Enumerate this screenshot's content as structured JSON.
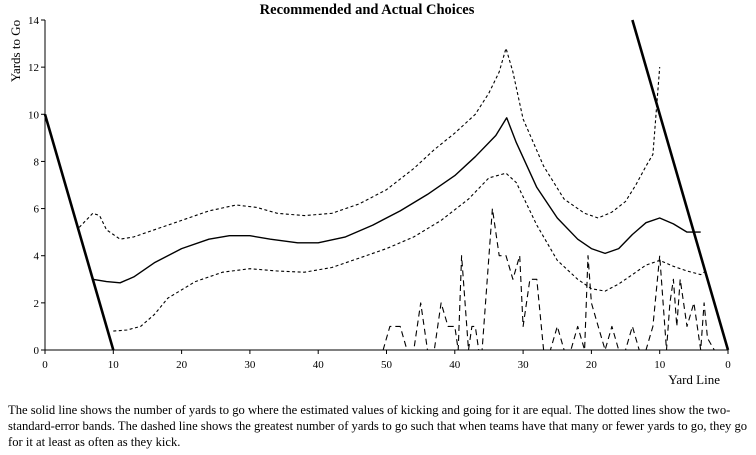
{
  "chart_data": {
    "type": "line",
    "title": "Recommended and Actual Choices",
    "xlabel": "Yard Line",
    "ylabel": "Yards to Go",
    "x_ticks": [
      0,
      10,
      20,
      30,
      40,
      50,
      40,
      30,
      20,
      10,
      0
    ],
    "y_ticks": [
      0,
      2,
      4,
      6,
      8,
      10,
      12,
      14
    ],
    "xlim": [
      0,
      100
    ],
    "ylim": [
      0,
      14
    ],
    "grid": false,
    "x_note": "x is distance from own goal line; right end is opponent's goal line",
    "series": [
      {
        "style": "solid",
        "points": [
          [
            7,
            3.0
          ],
          [
            9,
            2.9
          ],
          [
            11,
            2.85
          ],
          [
            13,
            3.1
          ],
          [
            16,
            3.7
          ],
          [
            20,
            4.3
          ],
          [
            24,
            4.7
          ],
          [
            27,
            4.85
          ],
          [
            30,
            4.85
          ],
          [
            33,
            4.7
          ],
          [
            37,
            4.55
          ],
          [
            40,
            4.55
          ],
          [
            44,
            4.8
          ],
          [
            48,
            5.3
          ],
          [
            52,
            5.9
          ],
          [
            56,
            6.6
          ],
          [
            60,
            7.4
          ],
          [
            63,
            8.2
          ],
          [
            66,
            9.1
          ],
          [
            67.6,
            9.85
          ],
          [
            69,
            8.8
          ],
          [
            72,
            6.9
          ],
          [
            75,
            5.6
          ],
          [
            78,
            4.7
          ],
          [
            80,
            4.3
          ],
          [
            82,
            4.1
          ],
          [
            84,
            4.3
          ],
          [
            86,
            4.9
          ],
          [
            88,
            5.4
          ],
          [
            90,
            5.6
          ],
          [
            92,
            5.35
          ],
          [
            94,
            5.0
          ],
          [
            96,
            5.0
          ]
        ]
      },
      {
        "style": "dotted",
        "points": [
          [
            5,
            5.2
          ],
          [
            7,
            5.8
          ],
          [
            8,
            5.7
          ],
          [
            9,
            5.1
          ],
          [
            11,
            4.7
          ],
          [
            13,
            4.8
          ],
          [
            16,
            5.1
          ],
          [
            20,
            5.5
          ],
          [
            24,
            5.9
          ],
          [
            28,
            6.15
          ],
          [
            31,
            6.05
          ],
          [
            34,
            5.8
          ],
          [
            38,
            5.7
          ],
          [
            42,
            5.8
          ],
          [
            46,
            6.2
          ],
          [
            50,
            6.8
          ],
          [
            54,
            7.7
          ],
          [
            57,
            8.5
          ],
          [
            60,
            9.2
          ],
          [
            63,
            10.0
          ],
          [
            65,
            10.9
          ],
          [
            66.5,
            11.8
          ],
          [
            67.5,
            12.8
          ],
          [
            68.5,
            11.8
          ],
          [
            70,
            9.8
          ],
          [
            73,
            7.8
          ],
          [
            76,
            6.4
          ],
          [
            79,
            5.8
          ],
          [
            81,
            5.6
          ],
          [
            83,
            5.85
          ],
          [
            85,
            6.3
          ],
          [
            86.5,
            7.0
          ],
          [
            88,
            7.8
          ],
          [
            89,
            8.3
          ],
          [
            90,
            12.0
          ]
        ]
      },
      {
        "style": "dotted",
        "points": [
          [
            10,
            0.8
          ],
          [
            12,
            0.85
          ],
          [
            14,
            1.0
          ],
          [
            16,
            1.5
          ],
          [
            18,
            2.2
          ],
          [
            22,
            2.9
          ],
          [
            26,
            3.3
          ],
          [
            30,
            3.45
          ],
          [
            34,
            3.35
          ],
          [
            38,
            3.3
          ],
          [
            42,
            3.5
          ],
          [
            46,
            3.9
          ],
          [
            50,
            4.3
          ],
          [
            54,
            4.8
          ],
          [
            58,
            5.5
          ],
          [
            62,
            6.4
          ],
          [
            65,
            7.3
          ],
          [
            67.5,
            7.5
          ],
          [
            69,
            7.1
          ],
          [
            72,
            5.3
          ],
          [
            75,
            3.8
          ],
          [
            78,
            3.0
          ],
          [
            80,
            2.6
          ],
          [
            82,
            2.5
          ],
          [
            84,
            2.8
          ],
          [
            86,
            3.2
          ],
          [
            88,
            3.6
          ],
          [
            90,
            3.8
          ],
          [
            92,
            3.55
          ],
          [
            94,
            3.35
          ],
          [
            96,
            3.2
          ],
          [
            97,
            3.4
          ]
        ]
      },
      {
        "style": "dashed",
        "points": [
          [
            49.5,
            0
          ],
          [
            50.5,
            1
          ],
          [
            52,
            1
          ],
          [
            53,
            0
          ],
          [
            54,
            0
          ],
          [
            55,
            2
          ],
          [
            56,
            0
          ],
          [
            57,
            0
          ],
          [
            57.5,
            1
          ],
          [
            58,
            2
          ],
          [
            59,
            1
          ],
          [
            60,
            1
          ],
          [
            60.5,
            0
          ],
          [
            61,
            4
          ],
          [
            62,
            0
          ],
          [
            62.5,
            1
          ],
          [
            63,
            1
          ],
          [
            63.5,
            0
          ],
          [
            64,
            0
          ],
          [
            65.5,
            6
          ],
          [
            66.5,
            4
          ],
          [
            67.5,
            4
          ],
          [
            68.5,
            3
          ],
          [
            69.5,
            4
          ],
          [
            70,
            1
          ],
          [
            71,
            3
          ],
          [
            72,
            3
          ],
          [
            73,
            0
          ],
          [
            74,
            0
          ],
          [
            75,
            1
          ],
          [
            76,
            0
          ],
          [
            77,
            0
          ],
          [
            78,
            1
          ],
          [
            79,
            0
          ],
          [
            79.5,
            4
          ],
          [
            80,
            2
          ],
          [
            81,
            1
          ],
          [
            82,
            0
          ],
          [
            83,
            1
          ],
          [
            84,
            0
          ],
          [
            85,
            0
          ],
          [
            86,
            1
          ],
          [
            87,
            0
          ],
          [
            88,
            0
          ],
          [
            89,
            1
          ],
          [
            90,
            4
          ],
          [
            91,
            0
          ],
          [
            91.5,
            2
          ],
          [
            92,
            3
          ],
          [
            92.5,
            1
          ],
          [
            93,
            3
          ],
          [
            94,
            1
          ],
          [
            95,
            2
          ],
          [
            96,
            0
          ],
          [
            96.5,
            2
          ],
          [
            97,
            0.5
          ],
          [
            98,
            0
          ]
        ]
      }
    ],
    "boundary_lines": [
      {
        "style": "solid-heavy",
        "points": [
          [
            0,
            10
          ],
          [
            10,
            0
          ]
        ]
      },
      {
        "style": "solid-heavy",
        "points": [
          [
            86,
            14
          ],
          [
            100,
            0
          ]
        ]
      }
    ]
  },
  "caption": "The solid line shows the number of yards to go where the estimated values of kicking and going for it are equal.  The dotted lines show the two-standard-error bands.  The dashed line shows the greatest number of yards to go such that when teams have that many or fewer yards to go, they go for it at least as often as they kick."
}
